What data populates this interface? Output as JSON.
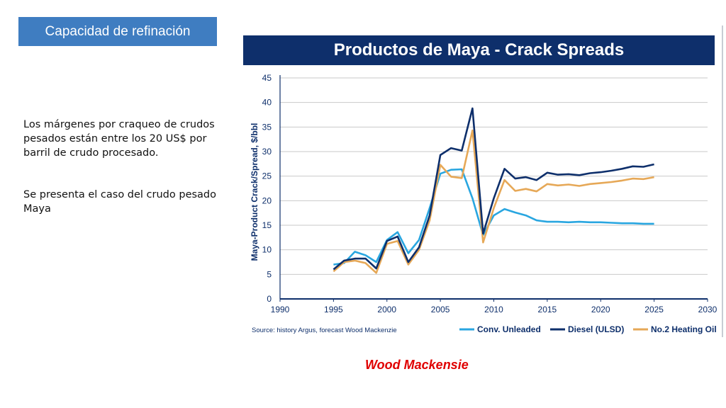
{
  "section_tag": "Capacidad de refinación",
  "paragraphs": [
    "Los márgenes por craqueo de crudos pesados están entre los 20 US$ por barril de crudo procesado.",
    "Se presenta el caso del crudo pesado Maya"
  ],
  "credit": "Wood Mackensie",
  "colors": {
    "section_tag_bg": "#3f7dc1",
    "chart_title_bg": "#0e2f6b",
    "credit": "#e00000"
  },
  "chart_data": {
    "type": "line",
    "title": "Productos de Maya - Crack Spreads",
    "xlabel": "",
    "ylabel": "Maya-Product Crack/Spread, $/bbl",
    "xlim": [
      1990,
      2030
    ],
    "ylim": [
      0,
      45
    ],
    "xticks": [
      1990,
      1995,
      2000,
      2005,
      2010,
      2015,
      2020,
      2025,
      2030
    ],
    "yticks": [
      0,
      5,
      10,
      15,
      20,
      25,
      30,
      35,
      40,
      45
    ],
    "grid": "horizontal",
    "legend_position": "bottom-right",
    "source": "Source: history Argus, forecast Wood Mackenzie",
    "series": [
      {
        "name": "Conv. Unleaded",
        "color": "#29a6e0",
        "x": [
          1995,
          1996,
          1997,
          1998,
          1999,
          2000,
          2001,
          2002,
          2003,
          2004,
          2005,
          2006,
          2007,
          2008,
          2009,
          2010,
          2011,
          2012,
          2013,
          2014,
          2015,
          2016,
          2017,
          2018,
          2019,
          2020,
          2021,
          2022,
          2023,
          2024,
          2025
        ],
        "y": [
          7.0,
          7.3,
          9.6,
          8.9,
          7.5,
          12.0,
          13.6,
          9.3,
          12.0,
          18.5,
          25.5,
          26.3,
          26.4,
          20.5,
          13.0,
          17.0,
          18.3,
          17.6,
          17.0,
          16.0,
          15.7,
          15.7,
          15.6,
          15.7,
          15.6,
          15.6,
          15.5,
          15.4,
          15.4,
          15.3,
          15.3
        ]
      },
      {
        "name": "Diesel (ULSD)",
        "color": "#0e2f6b",
        "x": [
          1995,
          1996,
          1997,
          1998,
          1999,
          2000,
          2001,
          2002,
          2003,
          2004,
          2005,
          2006,
          2007,
          2008,
          2009,
          2010,
          2011,
          2012,
          2013,
          2014,
          2015,
          2016,
          2017,
          2018,
          2019,
          2020,
          2021,
          2022,
          2023,
          2024,
          2025
        ],
        "y": [
          6.0,
          7.8,
          8.2,
          8.2,
          6.2,
          11.8,
          12.7,
          7.5,
          10.5,
          17.0,
          29.3,
          30.7,
          30.2,
          38.8,
          13.3,
          20.5,
          26.5,
          24.5,
          24.8,
          24.2,
          25.7,
          25.3,
          25.4,
          25.2,
          25.6,
          25.8,
          26.1,
          26.5,
          27.0,
          26.9,
          27.4
        ]
      },
      {
        "name": "No.2 Heating Oil",
        "color": "#e6a857",
        "x": [
          1995,
          1996,
          1997,
          1998,
          1999,
          2000,
          2001,
          2002,
          2003,
          2004,
          2005,
          2006,
          2007,
          2008,
          2009,
          2010,
          2011,
          2012,
          2013,
          2014,
          2015,
          2016,
          2017,
          2018,
          2019,
          2020,
          2021,
          2022,
          2023,
          2024,
          2025
        ],
        "y": [
          5.6,
          7.5,
          7.8,
          7.3,
          5.3,
          11.2,
          11.8,
          7.0,
          10.0,
          16.0,
          27.3,
          24.9,
          24.6,
          34.3,
          11.5,
          18.5,
          24.2,
          22.0,
          22.4,
          21.9,
          23.4,
          23.1,
          23.3,
          23.0,
          23.4,
          23.6,
          23.8,
          24.1,
          24.5,
          24.4,
          24.8
        ]
      }
    ]
  }
}
